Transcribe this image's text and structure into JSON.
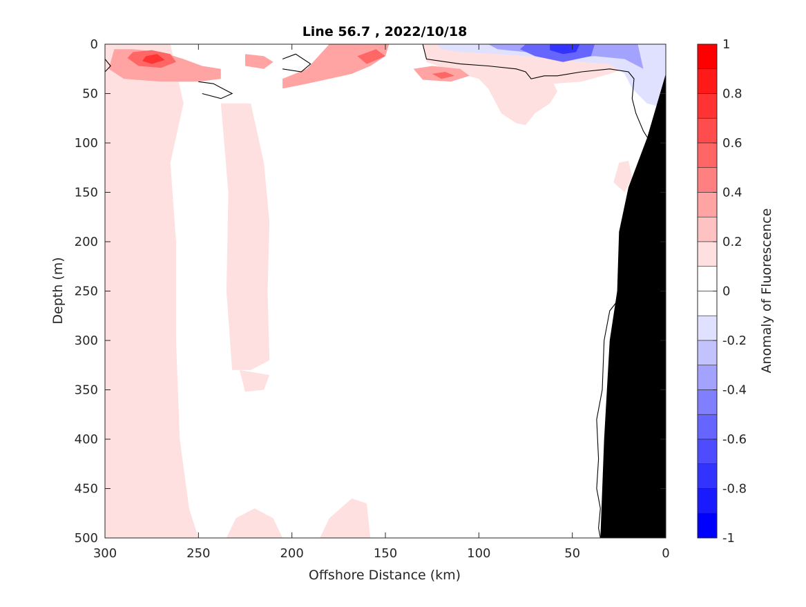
{
  "chart_data": {
    "type": "filled-contour",
    "title": "Line 56.7 , 2022/10/18",
    "xlabel": "Offshore Distance (km)",
    "ylabel": "Depth (m)",
    "colorbar_label": "Anomaly of Fluorescence",
    "xlim": [
      300,
      0
    ],
    "ylim": [
      0,
      500
    ],
    "x_reversed": true,
    "y_reversed": true,
    "x_ticks": [
      300,
      250,
      200,
      150,
      100,
      50,
      0
    ],
    "y_ticks": [
      0,
      50,
      100,
      150,
      200,
      250,
      300,
      350,
      400,
      450,
      500
    ],
    "clim": [
      -1,
      1
    ],
    "colorbar_ticks": [
      1,
      0.8,
      0.6,
      0.4,
      0.2,
      0,
      -0.2,
      -0.4,
      -0.6,
      -0.8,
      -1
    ],
    "levels": [
      {
        "from": 0.9,
        "to": 1.0,
        "color": "#ff0000"
      },
      {
        "from": 0.8,
        "to": 0.9,
        "color": "#ff1a1a"
      },
      {
        "from": 0.7,
        "to": 0.8,
        "color": "#ff3333"
      },
      {
        "from": 0.6,
        "to": 0.7,
        "color": "#ff4d4d"
      },
      {
        "from": 0.5,
        "to": 0.6,
        "color": "#ff6666"
      },
      {
        "from": 0.4,
        "to": 0.5,
        "color": "#ff8080"
      },
      {
        "from": 0.3,
        "to": 0.4,
        "color": "#ffa3a3"
      },
      {
        "from": 0.2,
        "to": 0.3,
        "color": "#ffc2c2"
      },
      {
        "from": 0.1,
        "to": 0.2,
        "color": "#ffe0e0"
      },
      {
        "from": 0.0,
        "to": 0.1,
        "color": "#ffffff"
      },
      {
        "from": -0.1,
        "to": 0.0,
        "color": "#ffffff"
      },
      {
        "from": -0.2,
        "to": -0.1,
        "color": "#e0e0ff"
      },
      {
        "from": -0.3,
        "to": -0.2,
        "color": "#c2c2ff"
      },
      {
        "from": -0.4,
        "to": -0.3,
        "color": "#a3a3ff"
      },
      {
        "from": -0.5,
        "to": -0.4,
        "color": "#8080ff"
      },
      {
        "from": -0.6,
        "to": -0.5,
        "color": "#6666ff"
      },
      {
        "from": -0.7,
        "to": -0.6,
        "color": "#4d4dff"
      },
      {
        "from": -0.8,
        "to": -0.7,
        "color": "#3333ff"
      },
      {
        "from": -0.9,
        "to": -0.8,
        "color": "#1a1aff"
      },
      {
        "from": -1.0,
        "to": -0.9,
        "color": "#0000ff"
      }
    ],
    "regions": [
      {
        "level": 0.15,
        "points": [
          [
            300,
            0
          ],
          [
            265,
            0
          ],
          [
            258,
            60
          ],
          [
            265,
            120
          ],
          [
            262,
            200
          ],
          [
            262,
            300
          ],
          [
            260,
            400
          ],
          [
            255,
            470
          ],
          [
            250,
            500
          ],
          [
            300,
            500
          ]
        ]
      },
      {
        "level": 0.15,
        "points": [
          [
            300,
            0
          ],
          [
            130,
            0
          ],
          [
            128,
            18
          ],
          [
            110,
            30
          ],
          [
            100,
            35
          ],
          [
            95,
            45
          ],
          [
            88,
            70
          ],
          [
            80,
            80
          ],
          [
            75,
            82
          ],
          [
            70,
            70
          ],
          [
            62,
            60
          ],
          [
            58,
            48
          ],
          [
            60,
            40
          ],
          [
            45,
            38
          ],
          [
            30,
            30
          ],
          [
            15,
            20
          ],
          [
            0,
            15
          ],
          [
            0,
            0
          ]
        ]
      },
      {
        "level": 0.15,
        "points": [
          [
            238,
            60
          ],
          [
            222,
            60
          ],
          [
            215,
            120
          ],
          [
            212,
            180
          ],
          [
            213,
            250
          ],
          [
            212,
            320
          ],
          [
            222,
            330
          ],
          [
            232,
            330
          ],
          [
            235,
            250
          ],
          [
            234,
            150
          ]
        ]
      },
      {
        "level": 0.15,
        "points": [
          [
            228,
            330
          ],
          [
            212,
            335
          ],
          [
            215,
            350
          ],
          [
            225,
            352
          ]
        ]
      },
      {
        "level": 0.15,
        "points": [
          [
            230,
            480
          ],
          [
            220,
            470
          ],
          [
            210,
            480
          ],
          [
            205,
            500
          ],
          [
            235,
            500
          ]
        ]
      },
      {
        "level": 0.15,
        "points": [
          [
            180,
            480
          ],
          [
            168,
            460
          ],
          [
            160,
            465
          ],
          [
            158,
            500
          ],
          [
            185,
            500
          ]
        ]
      },
      {
        "level": 0.15,
        "points": [
          [
            25,
            120
          ],
          [
            20,
            118
          ],
          [
            18,
            135
          ],
          [
            22,
            150
          ],
          [
            28,
            140
          ]
        ]
      },
      {
        "level": 0.35,
        "points": [
          [
            295,
            5
          ],
          [
            285,
            5
          ],
          [
            270,
            8
          ],
          [
            258,
            15
          ],
          [
            248,
            22
          ],
          [
            238,
            25
          ],
          [
            238,
            35
          ],
          [
            250,
            38
          ],
          [
            270,
            38
          ],
          [
            290,
            35
          ],
          [
            298,
            25
          ]
        ]
      },
      {
        "level": 0.35,
        "points": [
          [
            225,
            10
          ],
          [
            215,
            12
          ],
          [
            210,
            18
          ],
          [
            215,
            25
          ],
          [
            225,
            22
          ]
        ]
      },
      {
        "level": 0.35,
        "points": [
          [
            180,
            0
          ],
          [
            148,
            0
          ],
          [
            150,
            12
          ],
          [
            158,
            22
          ],
          [
            168,
            30
          ],
          [
            180,
            35
          ],
          [
            192,
            40
          ],
          [
            205,
            45
          ],
          [
            205,
            35
          ],
          [
            192,
            25
          ]
        ]
      },
      {
        "level": 0.35,
        "points": [
          [
            135,
            25
          ],
          [
            125,
            22
          ],
          [
            110,
            25
          ],
          [
            105,
            32
          ],
          [
            115,
            38
          ],
          [
            130,
            36
          ]
        ]
      },
      {
        "level": 0.55,
        "points": [
          [
            285,
            8
          ],
          [
            275,
            6
          ],
          [
            265,
            10
          ],
          [
            262,
            18
          ],
          [
            270,
            24
          ],
          [
            282,
            22
          ],
          [
            288,
            14
          ]
        ]
      },
      {
        "level": 0.55,
        "points": [
          [
            165,
            12
          ],
          [
            155,
            5
          ],
          [
            150,
            12
          ],
          [
            160,
            20
          ]
        ]
      },
      {
        "level": 0.55,
        "points": [
          [
            125,
            30
          ],
          [
            118,
            28
          ],
          [
            113,
            32
          ],
          [
            120,
            35
          ]
        ]
      },
      {
        "level": 0.75,
        "points": [
          [
            278,
            12
          ],
          [
            272,
            10
          ],
          [
            268,
            16
          ],
          [
            275,
            20
          ],
          [
            280,
            17
          ]
        ]
      },
      {
        "level": -0.15,
        "points": [
          [
            122,
            0
          ],
          [
            0,
            0
          ],
          [
            0,
            65
          ],
          [
            10,
            60
          ],
          [
            18,
            45
          ],
          [
            22,
            30
          ],
          [
            30,
            20
          ],
          [
            45,
            18
          ],
          [
            60,
            15
          ],
          [
            75,
            12
          ],
          [
            90,
            10
          ],
          [
            110,
            8
          ],
          [
            120,
            5
          ]
        ]
      },
      {
        "level": -0.35,
        "points": [
          [
            95,
            0
          ],
          [
            15,
            0
          ],
          [
            12,
            25
          ],
          [
            22,
            15
          ],
          [
            38,
            12
          ],
          [
            60,
            15
          ],
          [
            75,
            8
          ],
          [
            90,
            5
          ]
        ]
      },
      {
        "level": -0.55,
        "points": [
          [
            75,
            0
          ],
          [
            38,
            0
          ],
          [
            40,
            12
          ],
          [
            55,
            18
          ],
          [
            70,
            12
          ],
          [
            78,
            5
          ]
        ]
      },
      {
        "level": -0.75,
        "points": [
          [
            62,
            0
          ],
          [
            46,
            0
          ],
          [
            48,
            8
          ],
          [
            55,
            10
          ],
          [
            62,
            6
          ]
        ]
      }
    ],
    "zero_contours": [
      [
        [
          130,
          0
        ],
        [
          128,
          15
        ],
        [
          110,
          20
        ],
        [
          95,
          22
        ],
        [
          80,
          25
        ],
        [
          75,
          28
        ],
        [
          72,
          35
        ],
        [
          65,
          32
        ],
        [
          58,
          32
        ],
        [
          45,
          28
        ],
        [
          30,
          25
        ],
        [
          20,
          28
        ],
        [
          17,
          35
        ],
        [
          18,
          55
        ],
        [
          16,
          70
        ],
        [
          12,
          88
        ],
        [
          8,
          100
        ]
      ],
      [
        [
          20,
          245
        ],
        [
          25,
          258
        ],
        [
          30,
          270
        ],
        [
          33,
          300
        ],
        [
          34,
          350
        ],
        [
          37,
          380
        ],
        [
          36,
          420
        ],
        [
          37,
          450
        ],
        [
          35,
          470
        ],
        [
          36,
          490
        ],
        [
          35,
          500
        ]
      ],
      [
        [
          205,
          15
        ],
        [
          198,
          10
        ],
        [
          190,
          20
        ],
        [
          195,
          28
        ],
        [
          205,
          25
        ]
      ],
      [
        [
          250,
          38
        ],
        [
          242,
          40
        ],
        [
          232,
          50
        ],
        [
          238,
          55
        ],
        [
          248,
          50
        ]
      ],
      [
        [
          300,
          15
        ],
        [
          297,
          22
        ],
        [
          300,
          28
        ]
      ]
    ],
    "land_mask": [
      [
        35,
        500
      ],
      [
        33,
        400
      ],
      [
        30,
        300
      ],
      [
        26,
        250
      ],
      [
        25,
        190
      ],
      [
        20,
        145
      ],
      [
        10,
        95
      ],
      [
        0,
        30
      ],
      [
        0,
        500
      ]
    ]
  }
}
